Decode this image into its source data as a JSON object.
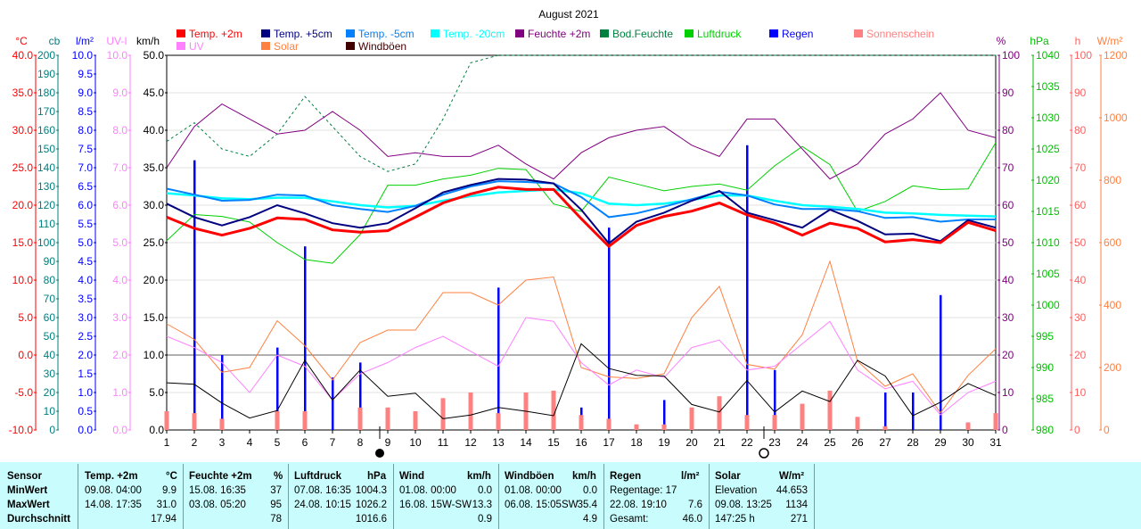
{
  "chart_data": {
    "type": "line",
    "title": "August 2021",
    "x": [
      1,
      2,
      3,
      4,
      5,
      6,
      7,
      8,
      9,
      10,
      11,
      12,
      13,
      14,
      15,
      16,
      17,
      18,
      19,
      20,
      21,
      22,
      23,
      24,
      25,
      26,
      27,
      28,
      29,
      30,
      31
    ],
    "axes_left": [
      {
        "unit": "°C",
        "color": "#ff0000",
        "ticks": [
          "40.0",
          "35.0",
          "30.0",
          "25.0",
          "20.0",
          "15.0",
          "10.0",
          "5.0",
          "0.0",
          "-5.0",
          "-10.0"
        ]
      },
      {
        "unit": "cb",
        "color": "#008080",
        "ticks": [
          "200",
          "190",
          "180",
          "170",
          "160",
          "150",
          "140",
          "130",
          "120",
          "110",
          "100",
          "90",
          "80",
          "70",
          "60",
          "50",
          "40",
          "30",
          "20",
          "10",
          "0"
        ]
      },
      {
        "unit": "l/m²",
        "color": "#0000ff",
        "ticks": [
          "10.0",
          "9.5",
          "9.0",
          "8.5",
          "8.0",
          "7.5",
          "7.0",
          "6.5",
          "6.0",
          "5.5",
          "5.0",
          "4.5",
          "4.0",
          "3.5",
          "3.0",
          "2.5",
          "2.0",
          "1.5",
          "1.0",
          "0.5",
          "0.0"
        ]
      },
      {
        "unit": "UV-I",
        "color": "#ff80ff",
        "ticks": [
          "10.0",
          "9.0",
          "8.0",
          "7.0",
          "6.0",
          "5.0",
          "4.0",
          "3.0",
          "2.0",
          "1.0",
          "0.0"
        ]
      },
      {
        "unit": "km/h",
        "color": "#000000",
        "ticks": [
          "50.0",
          "45.0",
          "40.0",
          "35.0",
          "30.0",
          "25.0",
          "20.0",
          "15.0",
          "10.0",
          "5.0",
          "0.0"
        ]
      }
    ],
    "axes_right": [
      {
        "unit": "%",
        "color": "#800080",
        "ticks": [
          "100",
          "90",
          "80",
          "70",
          "60",
          "50",
          "40",
          "30",
          "20",
          "10",
          "0"
        ]
      },
      {
        "unit": "hPa",
        "color": "#00c000",
        "ticks": [
          "1040",
          "1035",
          "1030",
          "1025",
          "1020",
          "1015",
          "1010",
          "1005",
          "1000",
          "995",
          "990",
          "985",
          "980"
        ]
      },
      {
        "unit": "h",
        "color": "#ff6060",
        "ticks": [
          "100",
          "90",
          "80",
          "70",
          "60",
          "50",
          "40",
          "30",
          "20",
          "10",
          "0"
        ]
      },
      {
        "unit": "W/m²",
        "color": "#ff8040",
        "ticks": [
          "1200",
          "1000",
          "800",
          "600",
          "400",
          "200",
          "0"
        ]
      }
    ],
    "legend": [
      {
        "name": "Temp. +2m",
        "color": "#ff0000"
      },
      {
        "name": "Temp. +5cm",
        "color": "#000080"
      },
      {
        "name": "Temp. -5cm",
        "color": "#0080ff"
      },
      {
        "name": "Temp. -20cm",
        "color": "#00ffff"
      },
      {
        "name": "Feuchte +2m",
        "color": "#800080"
      },
      {
        "name": "Bod.Feuchte",
        "color": "#008040"
      },
      {
        "name": "Luftdruck",
        "color": "#00d000"
      },
      {
        "name": "Regen",
        "color": "#0000ff"
      },
      {
        "name": "Sonnenschein",
        "color": "#ff8080"
      },
      {
        "name": "UV",
        "color": "#ff80ff"
      },
      {
        "name": "Solar",
        "color": "#ff8040"
      },
      {
        "name": "Windböen",
        "color": "#400000"
      }
    ],
    "series": [
      {
        "name": "Temp. +2m",
        "axis": "°C",
        "color": "#ff0000",
        "values": [
          18.4,
          16.9,
          16.0,
          16.9,
          18.3,
          18.1,
          16.7,
          16.4,
          16.6,
          18.4,
          20.3,
          21.5,
          22.4,
          22.1,
          22.1,
          18.2,
          14.5,
          17.3,
          18.5,
          19.2,
          20.3,
          18.7,
          17.6,
          16.0,
          17.6,
          16.9,
          15.1,
          15.4,
          15.0,
          17.7,
          16.6
        ]
      },
      {
        "name": "Temp. +5cm",
        "axis": "°C",
        "color": "#000080",
        "values": [
          20.2,
          18.4,
          17.3,
          18.4,
          20.0,
          18.9,
          17.6,
          17.0,
          17.6,
          19.6,
          21.7,
          22.7,
          23.5,
          23.4,
          22.9,
          19.4,
          14.9,
          17.8,
          19.0,
          20.6,
          21.9,
          19.0,
          18.0,
          17.0,
          19.4,
          17.9,
          16.1,
          16.2,
          15.2,
          18.0,
          17.0
        ]
      },
      {
        "name": "Temp. -5cm",
        "axis": "°C",
        "color": "#0080ff",
        "values": [
          22.2,
          21.4,
          20.6,
          20.7,
          21.4,
          21.3,
          20.0,
          19.5,
          19.1,
          19.9,
          21.4,
          22.5,
          23.2,
          23.1,
          22.9,
          21.1,
          18.4,
          18.9,
          19.8,
          20.8,
          21.8,
          21.3,
          20.1,
          19.5,
          19.5,
          19.2,
          18.3,
          18.4,
          17.8,
          18.1,
          18.1
        ]
      },
      {
        "name": "Temp. -20cm",
        "axis": "°C",
        "color": "#00ffff",
        "values": [
          21.6,
          21.3,
          20.9,
          20.8,
          21.0,
          21.0,
          20.5,
          20.0,
          19.7,
          19.9,
          20.6,
          21.2,
          21.7,
          21.9,
          22.1,
          21.6,
          20.2,
          20.0,
          20.2,
          20.7,
          21.3,
          21.3,
          20.6,
          20.0,
          19.8,
          19.5,
          19.0,
          18.9,
          18.7,
          18.6,
          18.5
        ]
      },
      {
        "name": "Feuchte +2m",
        "axis": "%",
        "color": "#800080",
        "values": [
          70,
          81,
          87,
          83,
          79,
          80,
          85,
          80,
          73,
          74,
          73,
          73,
          76,
          71,
          67,
          74,
          78,
          80,
          81,
          76,
          73,
          83,
          83,
          75,
          67,
          71,
          79,
          83,
          90,
          80,
          78
        ]
      },
      {
        "name": "Bod.Feuchte",
        "axis": "%",
        "color": "#008040",
        "values": [
          77,
          82,
          75,
          73,
          79,
          89,
          81,
          73,
          69,
          71,
          83,
          98,
          100,
          100,
          100,
          100,
          100,
          100,
          100,
          100,
          100,
          100,
          100,
          100,
          100,
          100,
          100,
          100,
          100,
          100,
          100
        ]
      },
      {
        "name": "Luftdruck",
        "axis": "hPa",
        "color": "#00d000",
        "values": [
          1010.3,
          1014.5,
          1014.2,
          1013.3,
          1010.0,
          1007.3,
          1006.7,
          1011.3,
          1019.2,
          1019.2,
          1020.2,
          1020.8,
          1021.9,
          1021.7,
          1016.2,
          1015.0,
          1020.5,
          1019.4,
          1018.3,
          1019.0,
          1019.4,
          1018.4,
          1022.3,
          1025.4,
          1022.5,
          1015.0,
          1016.6,
          1019.1,
          1018.5,
          1018.6,
          1026.0
        ]
      },
      {
        "name": "Solar",
        "axis": "W/m²",
        "color": "#ff8040",
        "values": [
          340,
          290,
          185,
          200,
          350,
          270,
          160,
          280,
          320,
          320,
          440,
          440,
          400,
          480,
          490,
          200,
          170,
          165,
          180,
          360,
          460,
          210,
          195,
          305,
          540,
          220,
          140,
          180,
          55,
          175,
          260
        ]
      },
      {
        "name": "UV",
        "axis": "UV-I",
        "color": "#ff80ff",
        "values": [
          2.5,
          2.2,
          1.8,
          1.0,
          2.0,
          1.7,
          0.8,
          1.5,
          1.8,
          2.2,
          2.5,
          2.1,
          1.7,
          3.0,
          2.9,
          1.8,
          1.2,
          1.6,
          1.4,
          2.2,
          2.4,
          1.6,
          1.7,
          2.3,
          2.9,
          1.6,
          1.1,
          1.3,
          0.4,
          1.0,
          1.3
        ]
      },
      {
        "name": "Windböen",
        "axis": "km/h",
        "color": "#000000",
        "values": [
          6.3,
          6.1,
          3.6,
          1.6,
          2.6,
          9.3,
          4.0,
          8.0,
          4.5,
          4.9,
          1.5,
          2.0,
          3.0,
          2.5,
          1.9,
          11.5,
          8.2,
          7.3,
          7.2,
          3.4,
          2.4,
          6.6,
          2.4,
          5.2,
          3.8,
          9.3,
          7.2,
          1.9,
          3.7,
          6.2,
          4.6
        ]
      },
      {
        "name": "Regen",
        "axis": "l/m²",
        "color": "#0000ff",
        "kind": "bars",
        "values": [
          0,
          7.2,
          2.0,
          0,
          2.2,
          4.9,
          1.4,
          1.8,
          0,
          0,
          0,
          0,
          3.8,
          0,
          0,
          0.6,
          5.4,
          0,
          0.8,
          0,
          0,
          7.6,
          1.6,
          0.2,
          0,
          0,
          1.0,
          1.0,
          3.6,
          0.2,
          0
        ]
      },
      {
        "name": "Sonnenschein",
        "axis": "h",
        "color": "#ff8080",
        "kind": "bars",
        "values": [
          5.0,
          4.5,
          3.0,
          0,
          5.0,
          5.0,
          0,
          6.0,
          6.0,
          5.0,
          8.5,
          10.0,
          4.5,
          10.0,
          10.5,
          4.0,
          3.0,
          1.5,
          1.5,
          6.0,
          9.0,
          4.0,
          4.0,
          7.0,
          10.5,
          3.5,
          1.0,
          0,
          0,
          2.0,
          4.5
        ]
      }
    ],
    "xlim": [
      1,
      31
    ],
    "grid": true,
    "legend_position": "top",
    "markers": [
      "new moon after 8",
      "full moon after 22"
    ]
  },
  "stats": {
    "headers": {
      "sensor": "Sensor",
      "temp": "Temp. +2m",
      "temp_unit": "°C",
      "feuchte": "Feuchte +2m",
      "feuchte_unit": "%",
      "luft": "Luftdruck",
      "luft_unit": "hPa",
      "wind": "Wind",
      "wind_unit": "km/h",
      "boeen": "Windböen",
      "boeen_unit": "km/h",
      "regen": "Regen",
      "regen_unit": "l/m²",
      "solar": "Solar",
      "solar_unit": "W/m²"
    },
    "rows": [
      {
        "label": "MinWert",
        "temp_t": "09.08.  04:00",
        "temp_v": "9.9",
        "feu_t": "15.08.  16:35",
        "feu_v": "37",
        "luft_t": "07.08.  16:35",
        "luft_v": "1004.3",
        "wind_t": "01.08.  00:00",
        "wind_v": "0.0",
        "boe_t": "01.08.  00:00",
        "boe_v": "0.0",
        "regen_t": "Regentage: 17",
        "regen_v": "",
        "solar_t": "Elevation",
        "solar_v": "44.653"
      },
      {
        "label": "MaxWert",
        "temp_t": "14.08.  17:35",
        "temp_v": "31.0",
        "feu_t": "03.08.  05:20",
        "feu_v": "95",
        "luft_t": "24.08.  10:15",
        "luft_v": "1026.2",
        "wind_t": "16.08.  15W-SW",
        "wind_v": "13.3",
        "boe_t": "06.08.  15:05SW",
        "boe_v": "35.4",
        "regen_t": "22.08.  19:10",
        "regen_v": "7.6",
        "solar_t": "09.08.  13:25",
        "solar_v": "1134"
      },
      {
        "label": "Durchschnitt",
        "temp_t": "",
        "temp_v": "17.94",
        "feu_t": "",
        "feu_v": "78",
        "luft_t": "",
        "luft_v": "1016.6",
        "wind_t": "",
        "wind_v": "0.9",
        "boe_t": "",
        "boe_v": "4.9",
        "regen_t": "Gesamt:",
        "regen_v": "46.0",
        "solar_t": "147:25 h",
        "solar_v": "271"
      }
    ]
  }
}
